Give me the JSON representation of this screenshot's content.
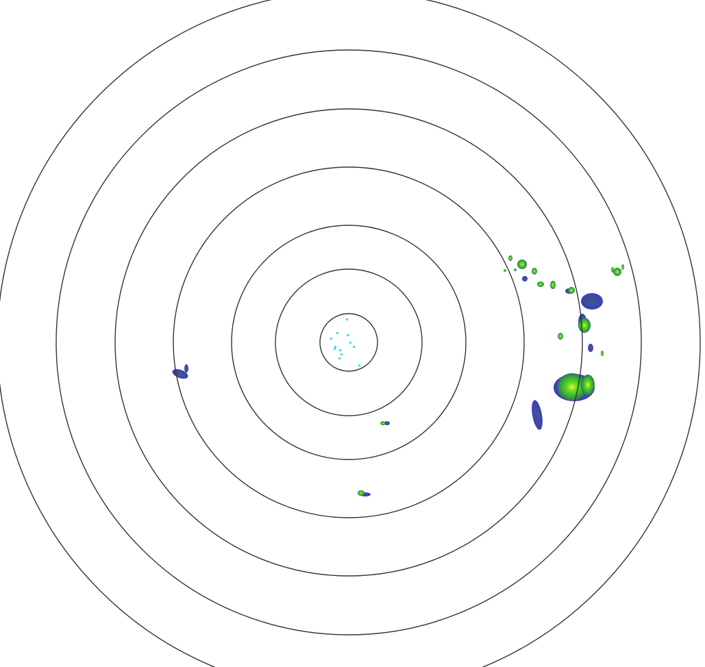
{
  "radar": {
    "range_ring_count": 7,
    "colors": {
      "background": "#ffffff",
      "range_ring": "#333333",
      "echo_weak": "#4a4fa8",
      "echo_light": "#2f8f3a",
      "echo_moderate": "#44cc22",
      "echo_core": "#e8f040",
      "clutter": "#33e0f0"
    }
  }
}
